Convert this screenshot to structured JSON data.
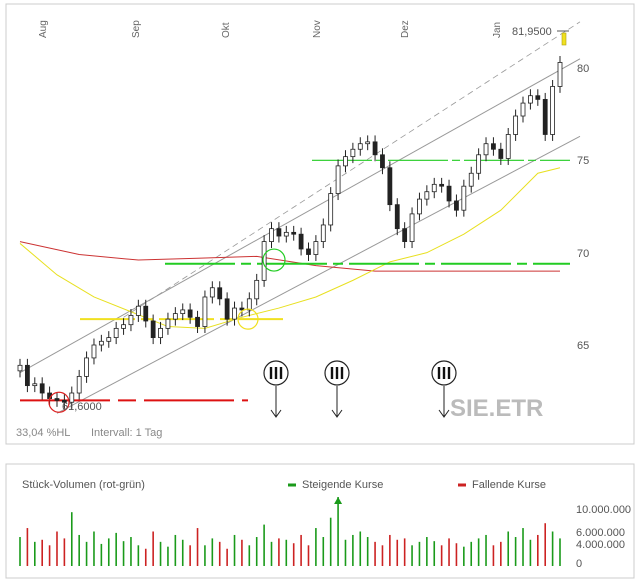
{
  "chart_data": {
    "type": "candlestick",
    "symbol": "SIE.ETR",
    "months": [
      "Aug",
      "Sep",
      "Okt",
      "Nov",
      "Dez",
      "Jan"
    ],
    "y_ticks": [
      "80",
      "75",
      "70",
      "65"
    ],
    "ylim": [
      60,
      83
    ],
    "last_price_label": "81,9500",
    "low_label": "61,6000",
    "footer_left": "33,04 %HL",
    "footer_interval": "Intervall: 1 Tag",
    "volume_panel": {
      "title": "Stück-Volumen (rot-grün)",
      "legend_rising": "Steigende Kurse",
      "legend_falling": "Fallende Kurse",
      "y_ticks": [
        "10.000.000",
        "6.000.000",
        "4.000.000",
        "0"
      ],
      "ymax": 13000000
    },
    "colors": {
      "rising": "#1a9a1a",
      "falling": "#cc2222",
      "support_red": "#dd1111",
      "support_green": "#22cc22",
      "support_yellow": "#f0e020",
      "ma_long": "#cc3333",
      "ma_short": "#e8e020",
      "channel": "#999999"
    },
    "close_points": [
      [
        0,
        63.9
      ],
      [
        1,
        62.8
      ],
      [
        2,
        62.9
      ],
      [
        3,
        62.4
      ],
      [
        4,
        62.1
      ],
      [
        5,
        62.0
      ],
      [
        6,
        61.9
      ],
      [
        7,
        62.4
      ],
      [
        8,
        63.3
      ],
      [
        9,
        64.3
      ],
      [
        10,
        65.0
      ],
      [
        11,
        65.2
      ],
      [
        12,
        65.4
      ],
      [
        13,
        65.9
      ],
      [
        14,
        66.1
      ],
      [
        15,
        66.6
      ],
      [
        16,
        67.1
      ],
      [
        17,
        66.3
      ],
      [
        18,
        65.4
      ],
      [
        19,
        65.9
      ],
      [
        20,
        66.4
      ],
      [
        21,
        66.7
      ],
      [
        22,
        66.9
      ],
      [
        23,
        66.5
      ],
      [
        24,
        66.0
      ],
      [
        25,
        67.6
      ],
      [
        26,
        68.1
      ],
      [
        27,
        67.5
      ],
      [
        28,
        66.4
      ],
      [
        29,
        67.0
      ],
      [
        30,
        66.9
      ],
      [
        31,
        67.5
      ],
      [
        32,
        68.5
      ],
      [
        33,
        70.6
      ],
      [
        34,
        71.3
      ],
      [
        35,
        70.9
      ],
      [
        36,
        71.1
      ],
      [
        37,
        71.0
      ],
      [
        38,
        70.2
      ],
      [
        39,
        69.9
      ],
      [
        40,
        70.6
      ],
      [
        41,
        71.5
      ],
      [
        42,
        73.2
      ],
      [
        43,
        74.7
      ],
      [
        44,
        75.2
      ],
      [
        45,
        75.6
      ],
      [
        46,
        75.9
      ],
      [
        47,
        76.0
      ],
      [
        48,
        75.3
      ],
      [
        49,
        74.6
      ],
      [
        50,
        72.6
      ],
      [
        51,
        71.3
      ],
      [
        52,
        70.6
      ],
      [
        53,
        72.1
      ],
      [
        54,
        72.9
      ],
      [
        55,
        73.3
      ],
      [
        56,
        73.7
      ],
      [
        57,
        73.6
      ],
      [
        58,
        72.8
      ],
      [
        59,
        72.3
      ],
      [
        60,
        73.6
      ],
      [
        61,
        74.3
      ],
      [
        62,
        75.3
      ],
      [
        63,
        75.9
      ],
      [
        64,
        75.6
      ],
      [
        65,
        75.1
      ],
      [
        66,
        76.4
      ],
      [
        67,
        77.4
      ],
      [
        68,
        78.1
      ],
      [
        69,
        78.5
      ],
      [
        70,
        78.3
      ],
      [
        71,
        76.4
      ],
      [
        72,
        79.0
      ],
      [
        73,
        80.3
      ]
    ],
    "volume_bars": [
      [
        0,
        0.42
      ],
      [
        1,
        0.55
      ],
      [
        2,
        0.35
      ],
      [
        3,
        0.38
      ],
      [
        4,
        0.3
      ],
      [
        5,
        0.5
      ],
      [
        6,
        0.4
      ],
      [
        7,
        0.78
      ],
      [
        8,
        0.45
      ],
      [
        9,
        0.35
      ],
      [
        10,
        0.5
      ],
      [
        11,
        0.32
      ],
      [
        12,
        0.4
      ],
      [
        13,
        0.48
      ],
      [
        14,
        0.36
      ],
      [
        15,
        0.42
      ],
      [
        16,
        0.3
      ],
      [
        17,
        0.25
      ],
      [
        18,
        0.5
      ],
      [
        19,
        0.35
      ],
      [
        20,
        0.28
      ],
      [
        21,
        0.45
      ],
      [
        22,
        0.38
      ],
      [
        23,
        0.3
      ],
      [
        24,
        0.55
      ],
      [
        25,
        0.3
      ],
      [
        26,
        0.4
      ],
      [
        27,
        0.35
      ],
      [
        28,
        0.25
      ],
      [
        29,
        0.45
      ],
      [
        30,
        0.38
      ],
      [
        31,
        0.3
      ],
      [
        32,
        0.42
      ],
      [
        33,
        0.6
      ],
      [
        34,
        0.35
      ],
      [
        35,
        0.4
      ],
      [
        36,
        0.38
      ],
      [
        37,
        0.33
      ],
      [
        38,
        0.45
      ],
      [
        39,
        0.3
      ],
      [
        40,
        0.55
      ],
      [
        41,
        0.42
      ],
      [
        42,
        0.7
      ],
      [
        43,
        1.0
      ],
      [
        44,
        0.38
      ],
      [
        45,
        0.45
      ],
      [
        46,
        0.5
      ],
      [
        47,
        0.42
      ],
      [
        48,
        0.35
      ],
      [
        49,
        0.3
      ],
      [
        50,
        0.45
      ],
      [
        51,
        0.38
      ],
      [
        52,
        0.4
      ],
      [
        53,
        0.3
      ],
      [
        54,
        0.35
      ],
      [
        55,
        0.42
      ],
      [
        56,
        0.36
      ],
      [
        57,
        0.3
      ],
      [
        58,
        0.4
      ],
      [
        59,
        0.33
      ],
      [
        60,
        0.28
      ],
      [
        61,
        0.35
      ],
      [
        62,
        0.4
      ],
      [
        63,
        0.45
      ],
      [
        64,
        0.3
      ],
      [
        65,
        0.35
      ],
      [
        66,
        0.5
      ],
      [
        67,
        0.42
      ],
      [
        68,
        0.55
      ],
      [
        69,
        0.38
      ],
      [
        70,
        0.45
      ],
      [
        71,
        0.62
      ],
      [
        72,
        0.5
      ],
      [
        73,
        0.4
      ]
    ]
  }
}
